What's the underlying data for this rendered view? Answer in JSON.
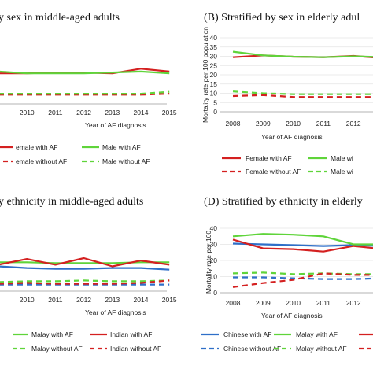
{
  "chart_data": [
    {
      "type": "line",
      "panel": "A",
      "title": "y sex in middle-aged adults",
      "xlabel": "Year of AF diagnosis",
      "ylabel": "",
      "x": [
        "9",
        "2010",
        "2011",
        "2012",
        "2013",
        "2014",
        "2015"
      ],
      "ylim": [
        0,
        40
      ],
      "series": [
        {
          "name": "emale with AF",
          "color": "#d42020",
          "dashed": false,
          "values": [
            16.5,
            16.5,
            17.0,
            17.0,
            16.5,
            19.0,
            17.5
          ]
        },
        {
          "name": "Male with AF",
          "color": "#5fd43a",
          "dashed": false,
          "values": [
            17.5,
            16.5,
            16.5,
            16.5,
            17.0,
            17.5,
            16.5
          ]
        },
        {
          "name": "emale without AF",
          "color": "#d42020",
          "dashed": true,
          "values": [
            5.0,
            5.0,
            5.0,
            5.0,
            5.0,
            5.0,
            5.5
          ]
        },
        {
          "name": "Male without AF",
          "color": "#5fd43a",
          "dashed": true,
          "values": [
            5.5,
            5.5,
            5.5,
            5.5,
            5.5,
            5.5,
            6.5
          ]
        }
      ]
    },
    {
      "type": "line",
      "panel": "B",
      "title": "(B)    Stratified by sex in elderly adul",
      "xlabel": "Year of AF diagnosis",
      "ylabel": "Mortality rate per 100 population",
      "x": [
        "2008",
        "2009",
        "2010",
        "2011",
        "2012",
        ""
      ],
      "yticks": [
        "0",
        "5",
        "10",
        "15",
        "20",
        "25",
        "30",
        "35",
        "40"
      ],
      "ylim": [
        0,
        40
      ],
      "series": [
        {
          "name": "Female with AF",
          "color": "#d42020",
          "dashed": false,
          "values": [
            29.5,
            30.5,
            29.8,
            29.5,
            30.2,
            29.0
          ]
        },
        {
          "name": "Male wi",
          "color": "#5fd43a",
          "dashed": false,
          "values": [
            32.5,
            30.5,
            29.8,
            29.5,
            30.0,
            29.5
          ]
        },
        {
          "name": "Female without AF",
          "color": "#d42020",
          "dashed": true,
          "values": [
            8.5,
            9.0,
            8.0,
            8.0,
            8.0,
            8.0
          ]
        },
        {
          "name": "Male wi",
          "color": "#5fd43a",
          "dashed": true,
          "values": [
            11.0,
            10.0,
            9.5,
            9.5,
            9.5,
            9.5
          ]
        }
      ]
    },
    {
      "type": "line",
      "panel": "C",
      "title": "y ethnicity in middle-aged adults",
      "xlabel": "Year of AF diagnosis",
      "ylabel": "",
      "x": [
        "9",
        "2010",
        "2011",
        "2012",
        "2013",
        "2014",
        "2015"
      ],
      "ylim": [
        0,
        40
      ],
      "series": [
        {
          "name": "",
          "color": "#2f6fc8",
          "dashed": false,
          "values": [
            15.0,
            14.0,
            13.5,
            13.5,
            14.0,
            14.0,
            13.0
          ]
        },
        {
          "name": "Malay with AF",
          "color": "#5fd43a",
          "dashed": false,
          "values": [
            17.5,
            17.5,
            17.0,
            17.0,
            17.0,
            17.5,
            17.5
          ]
        },
        {
          "name": "Indian with AF",
          "color": "#d42020",
          "dashed": false,
          "values": [
            16.0,
            19.5,
            16.0,
            20.0,
            15.0,
            18.5,
            16.0
          ]
        },
        {
          "name": "",
          "color": "#2f6fc8",
          "dashed": true,
          "values": [
            4.0,
            4.0,
            4.0,
            4.0,
            4.0,
            4.0,
            4.0
          ]
        },
        {
          "name": "Malay without AF",
          "color": "#5fd43a",
          "dashed": true,
          "values": [
            5.5,
            6.0,
            6.0,
            6.5,
            6.0,
            6.0,
            6.5
          ]
        },
        {
          "name": "Indian without AF",
          "color": "#d42020",
          "dashed": true,
          "values": [
            4.5,
            5.0,
            4.5,
            4.5,
            4.5,
            5.0,
            6.5
          ]
        }
      ]
    },
    {
      "type": "line",
      "panel": "D",
      "title": "(D)    Stratified by ethnicity in elderly",
      "xlabel": "Year of AF diagnosis",
      "ylabel": "Mortality rate per 100",
      "x": [
        "2008",
        "2009",
        "2010",
        "2011",
        "2012",
        ""
      ],
      "yticks": [
        "0",
        "10",
        "20",
        "30",
        "40"
      ],
      "ylim": [
        0,
        40
      ],
      "series": [
        {
          "name": "Chinese with AF",
          "color": "#2f6fc8",
          "dashed": false,
          "values": [
            30.5,
            30.0,
            29.5,
            29.0,
            29.5,
            29.0
          ]
        },
        {
          "name": "Malay with AF",
          "color": "#5fd43a",
          "dashed": false,
          "values": [
            35.0,
            36.5,
            36.0,
            35.0,
            30.0,
            30.0
          ]
        },
        {
          "name": "",
          "color": "#d42020",
          "dashed": false,
          "values": [
            33.0,
            27.5,
            27.0,
            25.5,
            29.0,
            27.0
          ]
        },
        {
          "name": "Chinese without AF",
          "color": "#2f6fc8",
          "dashed": true,
          "values": [
            9.5,
            9.5,
            9.0,
            8.5,
            8.5,
            9.0
          ]
        },
        {
          "name": "Malay without AF",
          "color": "#5fd43a",
          "dashed": true,
          "values": [
            12.0,
            12.5,
            11.5,
            12.0,
            11.5,
            11.5
          ]
        },
        {
          "name": "",
          "color": "#d42020",
          "dashed": true,
          "values": [
            3.5,
            6.0,
            8.0,
            12.0,
            11.0,
            11.0
          ]
        }
      ]
    }
  ]
}
